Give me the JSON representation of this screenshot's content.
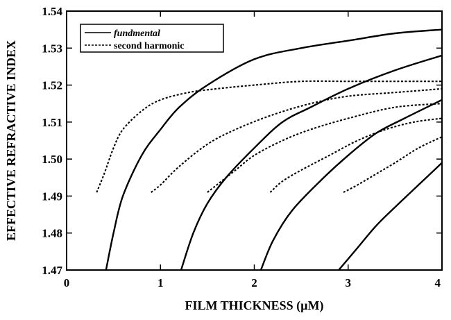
{
  "chart_data": {
    "type": "line",
    "title": "",
    "xlabel": "FILM THICKNESS (µM)",
    "ylabel": "EFFECTIVE REFRACTIVE INDEX",
    "xlim": [
      0,
      4
    ],
    "ylim": [
      1.47,
      1.54
    ],
    "xticks": [
      0,
      1,
      2,
      3,
      4
    ],
    "xtick_labels": [
      "0",
      "1",
      "2",
      "3",
      "4"
    ],
    "yticks": [
      1.47,
      1.48,
      1.49,
      1.5,
      1.51,
      1.52,
      1.53,
      1.54
    ],
    "ytick_labels": [
      "1.47",
      "1.48",
      "1.49",
      "1.50",
      "1.51",
      "1.52",
      "1.53",
      "1.54"
    ],
    "grid": false,
    "legend": {
      "placement": "top-left",
      "entries": [
        {
          "label": "fundmental",
          "style": "solid"
        },
        {
          "label": "second harmonic",
          "style": "dashed"
        }
      ]
    },
    "series": [
      {
        "group": "fundmental",
        "style": "solid",
        "color": "#000000",
        "x": [
          0.42,
          0.5,
          0.6,
          0.8,
          1.0,
          1.2,
          1.5,
          2.0,
          2.5,
          3.0,
          3.5,
          4.0
        ],
        "y": [
          1.47,
          1.48,
          1.49,
          1.501,
          1.508,
          1.514,
          1.52,
          1.527,
          1.53,
          1.532,
          1.534,
          1.535
        ]
      },
      {
        "group": "fundmental",
        "style": "solid",
        "color": "#000000",
        "x": [
          1.22,
          1.35,
          1.5,
          1.7,
          2.0,
          2.3,
          2.6,
          3.0,
          3.5,
          4.0
        ],
        "y": [
          1.47,
          1.48,
          1.488,
          1.495,
          1.503,
          1.51,
          1.514,
          1.519,
          1.524,
          1.528
        ]
      },
      {
        "group": "fundmental",
        "style": "solid",
        "color": "#000000",
        "x": [
          2.07,
          2.2,
          2.4,
          2.7,
          3.0,
          3.3,
          3.6,
          4.0
        ],
        "y": [
          1.47,
          1.478,
          1.486,
          1.494,
          1.501,
          1.507,
          1.511,
          1.516
        ]
      },
      {
        "group": "fundmental",
        "style": "solid",
        "color": "#000000",
        "x": [
          2.9,
          3.1,
          3.3,
          3.5,
          3.75,
          4.0
        ],
        "y": [
          1.47,
          1.476,
          1.482,
          1.487,
          1.493,
          1.499
        ]
      },
      {
        "group": "second harmonic",
        "style": "dashed",
        "color": "#000000",
        "x": [
          0.32,
          0.4,
          0.5,
          0.6,
          0.8,
          1.0,
          1.3,
          1.6,
          2.0,
          2.5,
          3.0,
          3.5,
          4.0
        ],
        "y": [
          1.491,
          1.496,
          1.503,
          1.508,
          1.513,
          1.516,
          1.518,
          1.519,
          1.52,
          1.521,
          1.521,
          1.521,
          1.521
        ]
      },
      {
        "group": "second harmonic",
        "style": "dashed",
        "color": "#000000",
        "x": [
          0.9,
          1.0,
          1.2,
          1.5,
          1.8,
          2.2,
          2.6,
          3.0,
          3.5,
          4.0
        ],
        "y": [
          1.491,
          1.493,
          1.498,
          1.504,
          1.508,
          1.512,
          1.515,
          1.517,
          1.518,
          1.519
        ]
      },
      {
        "group": "second harmonic",
        "style": "dashed",
        "color": "#000000",
        "x": [
          1.5,
          1.6,
          1.8,
          2.0,
          2.3,
          2.6,
          3.0,
          3.5,
          4.0
        ],
        "y": [
          1.491,
          1.493,
          1.497,
          1.501,
          1.505,
          1.508,
          1.511,
          1.514,
          1.515
        ]
      },
      {
        "group": "second harmonic",
        "style": "dashed",
        "color": "#000000",
        "x": [
          2.17,
          2.3,
          2.5,
          2.8,
          3.1,
          3.4,
          3.7,
          4.0
        ],
        "y": [
          1.491,
          1.494,
          1.497,
          1.501,
          1.505,
          1.508,
          1.51,
          1.511
        ]
      },
      {
        "group": "second harmonic",
        "style": "dashed",
        "color": "#000000",
        "x": [
          2.95,
          3.1,
          3.3,
          3.5,
          3.75,
          4.0
        ],
        "y": [
          1.491,
          1.493,
          1.496,
          1.499,
          1.503,
          1.506
        ]
      }
    ]
  }
}
